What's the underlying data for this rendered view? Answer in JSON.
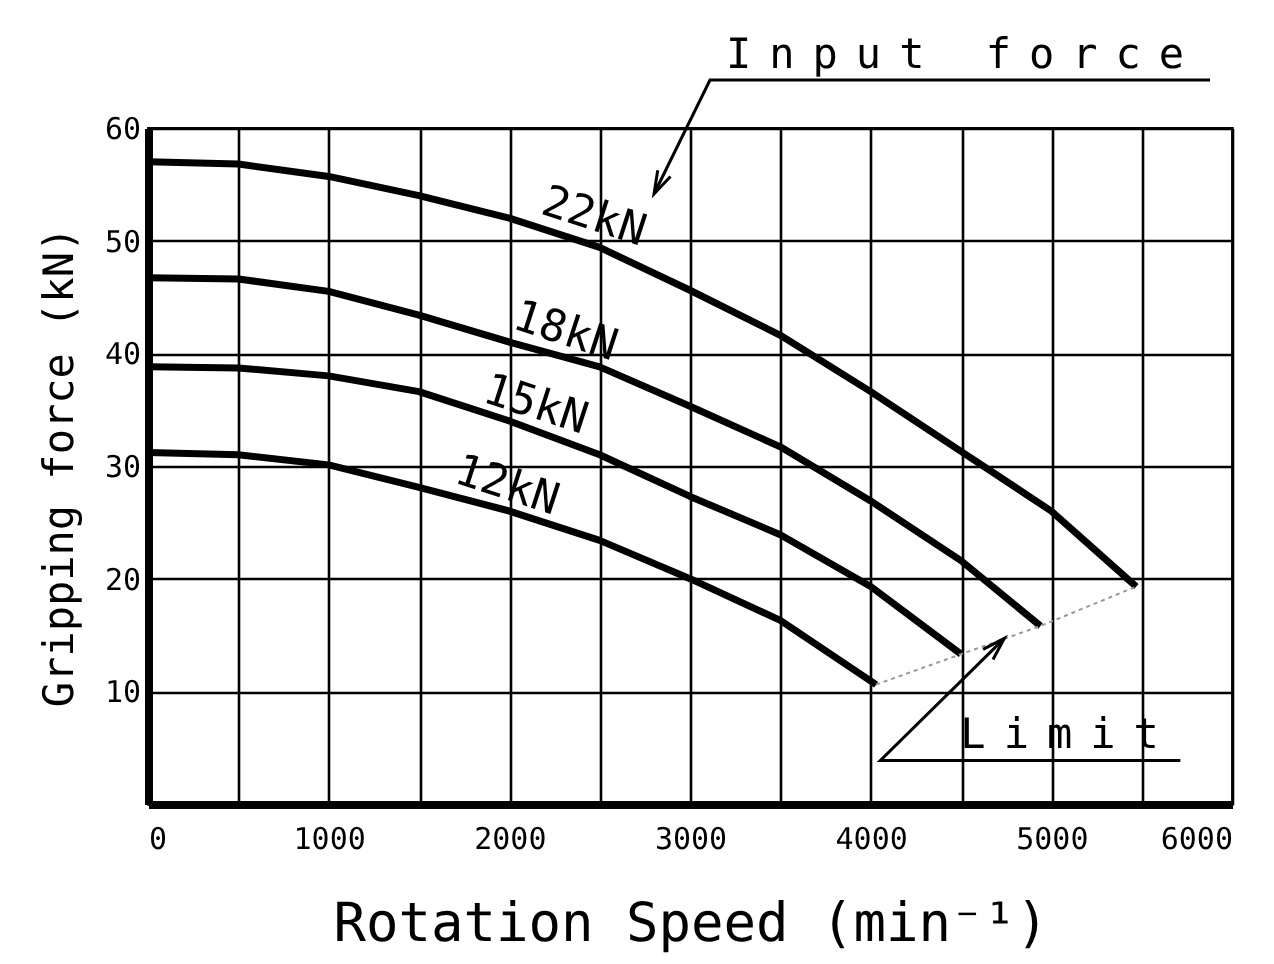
{
  "chart_data": {
    "type": "line",
    "xlabel": "Rotation Speed (min⁻¹)",
    "ylabel": "Gripping force (kN)",
    "xlim": [
      0,
      6000
    ],
    "ylim": [
      0,
      60
    ],
    "xticks": [
      0,
      {
        "value": 500,
        "label": null
      },
      1000,
      {
        "value": 1500,
        "label": null
      },
      2000,
      {
        "value": 2500,
        "label": null
      },
      3000,
      {
        "value": 3500,
        "label": null
      },
      4000,
      {
        "value": 4500,
        "label": null
      },
      5000,
      {
        "value": 5500,
        "label": null
      },
      6000
    ],
    "yticks": [
      10,
      20,
      30,
      40,
      50,
      60
    ],
    "grid": true,
    "series": [
      {
        "name": "22kN",
        "color": "#000000",
        "x": [
          0,
          500,
          1000,
          1500,
          2000,
          2500,
          3000,
          3500,
          4000,
          4500,
          5000,
          5470
        ],
        "values": [
          57,
          56.8,
          55.7,
          54,
          52,
          49.4,
          45.6,
          41.6,
          36.6,
          31.3,
          26,
          19.3
        ]
      },
      {
        "name": "18kN",
        "color": "#000000",
        "x": [
          0,
          500,
          1000,
          1500,
          2000,
          2500,
          3000,
          3500,
          4000,
          4500,
          4940
        ],
        "values": [
          46.7,
          46.6,
          45.5,
          43.4,
          41,
          38.8,
          35.3,
          31.7,
          26.9,
          21.6,
          15.8
        ]
      },
      {
        "name": "15kN",
        "color": "#000000",
        "x": [
          0,
          500,
          1000,
          1500,
          2000,
          2500,
          3000,
          3500,
          4000,
          4500
        ],
        "values": [
          38.8,
          38.7,
          38,
          36.6,
          34,
          31,
          27.3,
          23.9,
          19.3,
          13.3
        ]
      },
      {
        "name": "12kN",
        "color": "#000000",
        "x": [
          0,
          500,
          1000,
          1500,
          2000,
          2500,
          3000,
          3500,
          4030
        ],
        "values": [
          31.2,
          31,
          30.1,
          28.1,
          26,
          23.4,
          20,
          16.3,
          10.6
        ]
      },
      {
        "color": "#999999",
        "line_style": "dotted",
        "x": [
          4030,
          4500,
          4940,
          5470
        ],
        "values": [
          10.6,
          13.3,
          15.8,
          19.3
        ]
      }
    ],
    "annotations": [
      "Input force",
      {
        "text": "Limit",
        "x": 4740,
        "y": 14.7
      }
    ]
  }
}
